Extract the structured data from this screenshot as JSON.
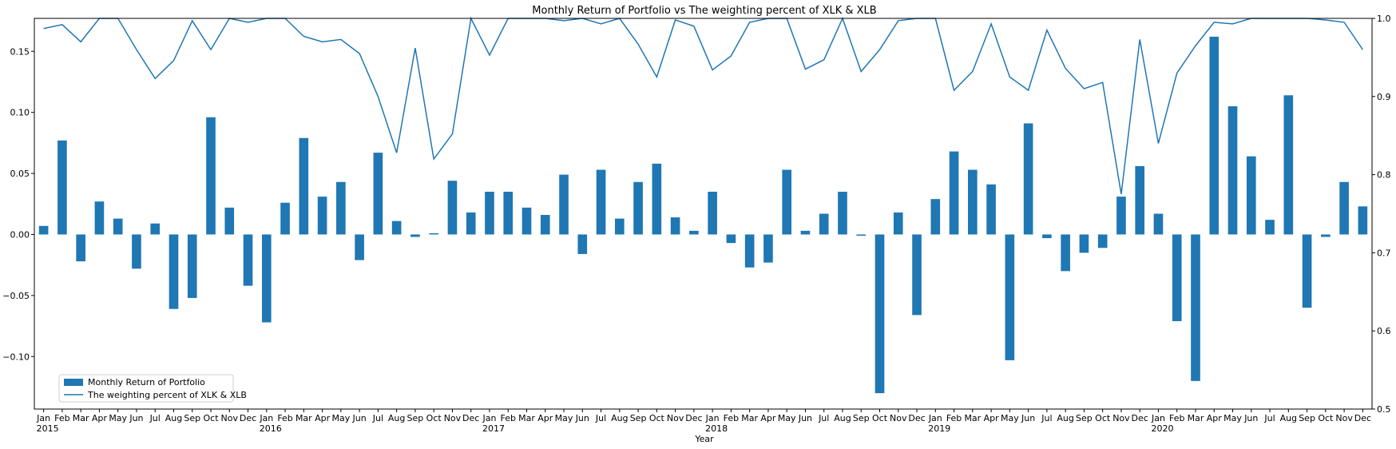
{
  "chart_data": {
    "type": "bar+line",
    "title": "Monthly Return of Portfolio vs The weighting percent of XLK & XLB",
    "xlabel": "Year",
    "ylabel": "",
    "ylabel_right": "",
    "categories": [
      "Jan",
      "Feb",
      "Mar",
      "Apr",
      "May",
      "Jun",
      "Jul",
      "Aug",
      "Sep",
      "Oct",
      "Nov",
      "Dec",
      "Jan",
      "Feb",
      "Mar",
      "Apr",
      "May",
      "Jun",
      "Jul",
      "Aug",
      "Sep",
      "Oct",
      "Nov",
      "Dec",
      "Jan",
      "Feb",
      "Mar",
      "Apr",
      "May",
      "Jun",
      "Jul",
      "Aug",
      "Sep",
      "Oct",
      "Nov",
      "Dec",
      "Jan",
      "Feb",
      "Mar",
      "Apr",
      "May",
      "Jun",
      "Jul",
      "Aug",
      "Sep",
      "Oct",
      "Nov",
      "Dec",
      "Jan",
      "Feb",
      "Mar",
      "Apr",
      "May",
      "Jun",
      "Jul",
      "Aug",
      "Sep",
      "Oct",
      "Nov",
      "Dec",
      "Jan",
      "Feb",
      "Mar",
      "Apr",
      "May",
      "Jun",
      "Jul",
      "Aug",
      "Sep",
      "Oct",
      "Nov",
      "Dec"
    ],
    "year_labels": [
      {
        "index": 0,
        "label": "2015"
      },
      {
        "index": 12,
        "label": "2016"
      },
      {
        "index": 24,
        "label": "2017"
      },
      {
        "index": 36,
        "label": "2018"
      },
      {
        "index": 48,
        "label": "2019"
      },
      {
        "index": 60,
        "label": "2020"
      }
    ],
    "ylim": [
      -0.143,
      0.177
    ],
    "yticks": [
      "-0.10",
      "-0.05",
      "0.00",
      "0.05",
      "0.10",
      "0.15"
    ],
    "yticks_values": [
      -0.1,
      -0.05,
      0.0,
      0.05,
      0.1,
      0.15
    ],
    "ylim_right": [
      0.5,
      1.0
    ],
    "yticks_right": [
      "0.5",
      "0.6",
      "0.7",
      "0.8",
      "0.9",
      "1.0"
    ],
    "yticks_right_values": [
      0.5,
      0.6,
      0.7,
      0.8,
      0.9,
      1.0
    ],
    "grid": false,
    "legend_position": "lower-left",
    "series": [
      {
        "name": "Monthly Return of Portfolio",
        "type": "bar",
        "axis": "left",
        "color": "#1f77b4",
        "values": [
          0.007,
          0.077,
          -0.022,
          0.027,
          0.013,
          -0.028,
          0.009,
          -0.061,
          -0.052,
          0.096,
          0.022,
          -0.042,
          -0.072,
          0.026,
          0.079,
          0.031,
          0.043,
          -0.021,
          0.067,
          0.011,
          -0.002,
          0.001,
          0.044,
          0.018,
          0.035,
          0.035,
          0.022,
          0.016,
          0.049,
          -0.016,
          0.053,
          0.013,
          0.043,
          0.058,
          0.014,
          0.003,
          0.035,
          -0.007,
          -0.027,
          -0.023,
          0.053,
          0.003,
          0.017,
          0.035,
          -0.001,
          -0.13,
          0.018,
          -0.066,
          0.029,
          0.068,
          0.053,
          0.041,
          -0.103,
          0.091,
          -0.003,
          -0.03,
          -0.015,
          -0.011,
          0.031,
          0.056,
          0.017,
          -0.071,
          -0.12,
          0.162,
          0.105,
          0.064,
          0.012,
          0.114,
          -0.06,
          -0.002,
          0.043,
          0.023
        ]
      },
      {
        "name": "The weighting percent of XLK & XLB",
        "type": "line",
        "axis": "right",
        "color": "#1f77b4",
        "values": [
          0.987,
          0.992,
          0.97,
          1.0,
          1.0,
          0.96,
          0.923,
          0.946,
          0.997,
          0.96,
          1.0,
          0.995,
          1.0,
          1.0,
          0.977,
          0.97,
          0.973,
          0.955,
          0.9,
          0.828,
          0.962,
          0.82,
          0.852,
          1.0,
          0.953,
          1.0,
          1.0,
          1.0,
          0.997,
          1.0,
          0.993,
          1.0,
          0.967,
          0.925,
          0.998,
          0.99,
          0.934,
          0.952,
          0.995,
          1.0,
          1.0,
          0.935,
          0.947,
          1.0,
          0.932,
          0.96,
          0.997,
          1.0,
          1.0,
          0.908,
          0.932,
          0.993,
          0.925,
          0.908,
          0.985,
          0.936,
          0.91,
          0.918,
          0.775,
          0.973,
          0.84,
          0.93,
          0.965,
          0.995,
          0.993,
          1.0,
          1.0,
          1.0,
          1.0,
          0.998,
          0.995,
          0.96
        ]
      }
    ]
  }
}
